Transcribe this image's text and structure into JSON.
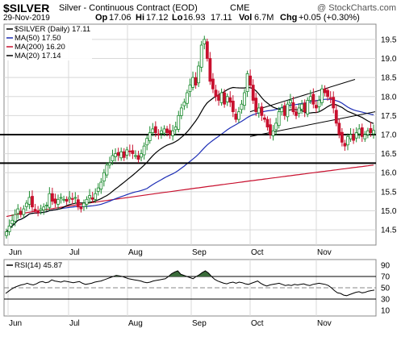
{
  "header": {
    "symbol": "$SILVER",
    "name": "Silver - Continuous Contract (EOD)",
    "exchange": "CME",
    "watermark": "@ StockCharts.com",
    "date": "29-Nov-2019",
    "op_label": "Op",
    "op": "17.06",
    "hi_label": "Hi",
    "hi": "17.12",
    "lo_label": "Lo",
    "lo": "16.93",
    "close": "17.11",
    "vol_label": "Vol",
    "vol": "6.7M",
    "chg_label": "Chg",
    "chg": "+0.05 (+0.30%)"
  },
  "legend": [
    {
      "text": "$SILVER (Daily) 17.11",
      "color": "#000000",
      "marker": "line"
    },
    {
      "text": "MA(50) 17.50",
      "color": "#1c2db5",
      "marker": "line"
    },
    {
      "text": "MA(200) 16.20",
      "color": "#c8102e",
      "marker": "line"
    },
    {
      "text": "MA(20) 17.14",
      "color": "#000000",
      "marker": "line"
    }
  ],
  "rsi_legend": "RSI(14) 45.87",
  "colors": {
    "up": "#1b8a2e",
    "down": "#c8102e",
    "ma50": "#1c2db5",
    "ma200": "#c8102e",
    "ma20": "#000000",
    "rsi_fill": "#3a6b3a",
    "grid": "#d8d8d8"
  },
  "chart_data": [
    {
      "type": "candlestick",
      "title": "$SILVER",
      "ylim": [
        14.1,
        19.9
      ],
      "ytick_labels": [
        "14.5",
        "15.0",
        "15.5",
        "16.0",
        "16.5",
        "17.0",
        "17.5",
        "18.0",
        "18.5",
        "19.0",
        "19.5"
      ],
      "xtick_labels": [
        "Jun",
        "Jul",
        "Aug",
        "Sep",
        "Oct",
        "Nov"
      ],
      "grid": true,
      "legend_position": "top-left",
      "close_values": [
        14.45,
        14.6,
        14.75,
        14.9,
        15.05,
        14.9,
        15.05,
        15.2,
        15.35,
        15.1,
        15.0,
        14.95,
        15.05,
        15.1,
        15.15,
        15.45,
        15.25,
        15.2,
        15.3,
        15.35,
        15.3,
        15.25,
        15.35,
        15.3,
        15.35,
        15.1,
        15.05,
        15.2,
        15.3,
        15.4,
        15.3,
        15.45,
        15.6,
        15.75,
        16.0,
        16.2,
        16.25,
        16.45,
        16.5,
        16.45,
        16.55,
        16.4,
        16.6,
        16.55,
        16.5,
        16.45,
        16.35,
        16.5,
        16.7,
        16.9,
        17.05,
        17.15,
        17.05,
        17.0,
        17.1,
        17.15,
        17.05,
        17.0,
        17.1,
        17.2,
        17.5,
        17.7,
        17.85,
        18.1,
        18.3,
        18.5,
        18.3,
        18.8,
        19.35,
        19.5,
        19.0,
        18.4,
        18.2,
        18.0,
        17.9,
        18.1,
        17.8,
        18.0,
        17.85,
        17.6,
        17.4,
        17.6,
        17.8,
        18.1,
        18.6,
        18.3,
        17.9,
        17.6,
        17.7,
        17.5,
        17.4,
        17.2,
        17.0,
        17.1,
        17.3,
        17.6,
        17.7,
        17.5,
        17.8,
        17.9,
        17.6,
        17.5,
        17.7,
        17.8,
        17.6,
        17.9,
        18.0,
        17.8,
        17.7,
        17.9,
        18.2,
        18.1,
        18.0,
        17.95,
        17.7,
        17.3,
        17.0,
        16.8,
        16.7,
        16.95,
        17.0,
        16.85,
        17.05,
        17.15,
        16.95,
        17.0,
        17.1,
        17.05,
        17.11
      ],
      "ma_values": [
        {
          "name": "MA(50)",
          "value": 17.5
        },
        {
          "name": "MA(200)",
          "value": 16.2
        },
        {
          "name": "MA(20)",
          "value": 17.14
        }
      ],
      "horizontal_lines": [
        17.0,
        16.25
      ],
      "channel": {
        "upper": [
          [
            17.6,
            18.45
          ]
        ],
        "lower": [
          [
            16.95,
            17.6
          ]
        ]
      }
    },
    {
      "type": "line",
      "title": "RSI(14)",
      "ylim": [
        0,
        100
      ],
      "ytick_labels": [
        "10",
        "30",
        "50",
        "70",
        "90"
      ],
      "reference_lines": [
        70,
        50,
        30
      ],
      "xtick_labels": [
        "Jun",
        "Jul",
        "Aug",
        "Sep",
        "Oct",
        "Nov"
      ],
      "values": [
        40,
        44,
        48,
        51,
        53,
        55,
        56,
        58,
        56,
        55,
        57,
        60,
        61,
        59,
        60,
        64,
        62,
        61,
        60,
        62,
        61,
        60,
        59,
        60,
        61,
        58,
        56,
        57,
        58,
        60,
        61,
        62,
        64,
        66,
        68,
        70,
        72,
        71,
        70,
        68,
        66,
        65,
        64,
        63,
        62,
        60,
        59,
        60,
        62,
        63,
        64,
        65,
        66,
        70,
        75,
        78,
        80,
        74,
        72,
        70,
        68,
        66,
        70,
        73,
        77,
        80,
        76,
        70,
        65,
        62,
        60,
        58,
        57,
        59,
        60,
        58,
        60,
        59,
        57,
        56,
        58,
        60,
        62,
        58,
        55,
        53,
        55,
        56,
        57,
        58,
        56,
        54,
        55,
        54,
        56,
        55,
        56,
        57,
        55,
        54,
        56,
        57,
        58,
        57,
        56,
        54,
        50,
        45,
        41,
        40,
        37,
        36,
        38,
        40,
        42,
        43,
        41,
        42,
        44,
        45,
        45.87
      ]
    }
  ]
}
